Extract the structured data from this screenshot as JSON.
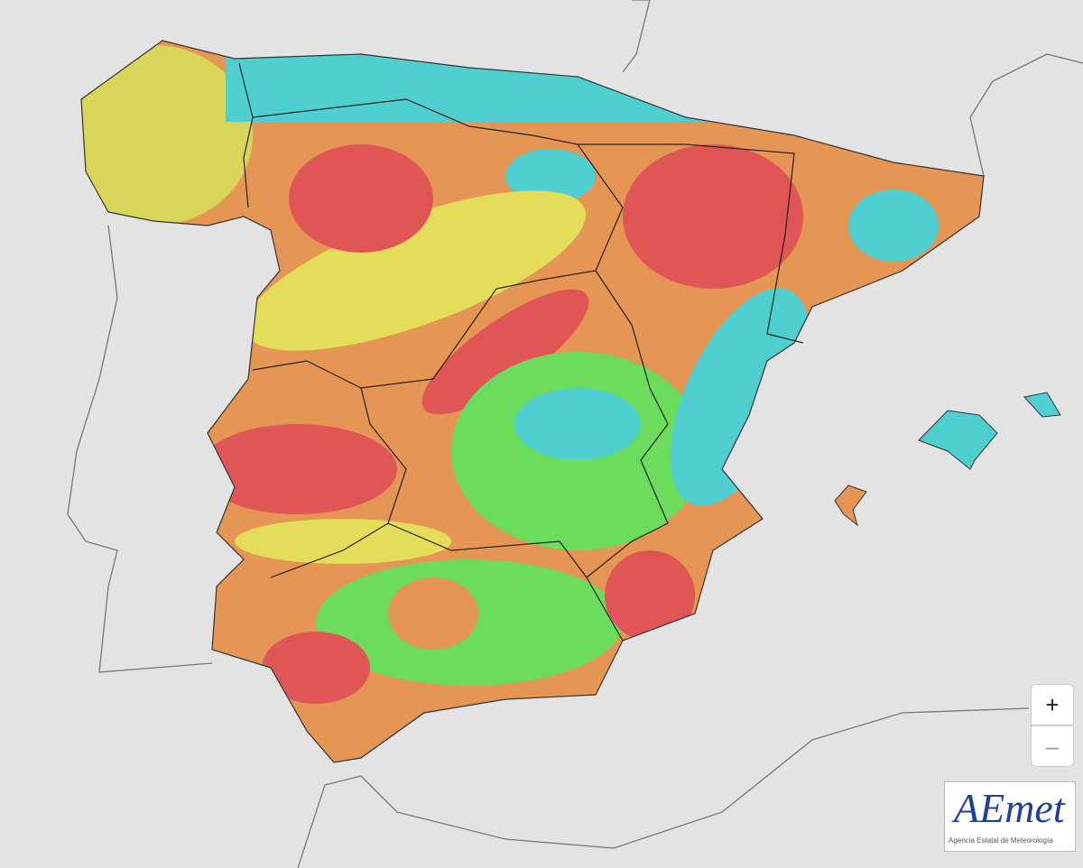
{
  "zoom_controls": {
    "zoom_in": "+",
    "zoom_out": "–"
  },
  "logo": {
    "name": "AEmet",
    "subtitle": "Agencia Estatal de Meteorología"
  }
}
